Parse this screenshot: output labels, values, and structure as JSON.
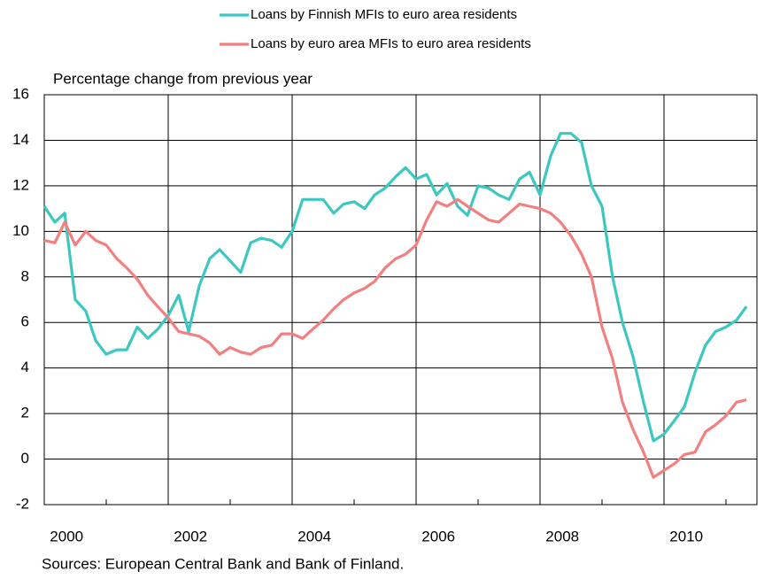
{
  "chart_data": {
    "type": "line",
    "y_label": "Percentage change from previous year",
    "source": "Sources: European Central Bank and Bank of Finland.",
    "x": [
      2000.0,
      2000.17,
      2000.33,
      2000.5,
      2000.67,
      2000.83,
      2001.0,
      2001.17,
      2001.33,
      2001.5,
      2001.67,
      2001.83,
      2002.0,
      2002.17,
      2002.33,
      2002.5,
      2002.67,
      2002.83,
      2003.0,
      2003.17,
      2003.33,
      2003.5,
      2003.67,
      2003.83,
      2004.0,
      2004.17,
      2004.33,
      2004.5,
      2004.67,
      2004.83,
      2005.0,
      2005.17,
      2005.33,
      2005.5,
      2005.67,
      2005.83,
      2006.0,
      2006.17,
      2006.33,
      2006.5,
      2006.67,
      2006.83,
      2007.0,
      2007.17,
      2007.33,
      2007.5,
      2007.67,
      2007.83,
      2008.0,
      2008.17,
      2008.33,
      2008.5,
      2008.67,
      2008.83,
      2009.0,
      2009.17,
      2009.33,
      2009.5,
      2009.67,
      2009.83,
      2010.0,
      2010.17,
      2010.33,
      2010.5,
      2010.67,
      2010.83,
      2011.0,
      2011.17,
      2011.33
    ],
    "series": [
      {
        "name": "Loans by Finnish MFIs to euro area residents",
        "color": "#3cc8c0",
        "values": [
          11.1,
          10.4,
          10.8,
          7.0,
          6.5,
          5.2,
          4.6,
          4.8,
          4.8,
          5.8,
          5.3,
          5.7,
          6.3,
          7.2,
          5.6,
          7.6,
          8.8,
          9.2,
          8.7,
          8.2,
          9.5,
          9.7,
          9.6,
          9.3,
          10.0,
          11.4,
          11.4,
          11.4,
          10.8,
          11.2,
          11.3,
          11.0,
          11.6,
          11.9,
          12.4,
          12.8,
          12.3,
          12.5,
          11.6,
          12.1,
          11.1,
          10.7,
          12.0,
          11.9,
          11.6,
          11.4,
          12.3,
          12.6,
          11.6,
          13.3,
          14.3,
          14.3,
          13.9,
          12.0,
          11.1,
          8.0,
          6.0,
          4.5,
          2.5,
          0.8,
          1.1,
          1.7,
          2.3,
          3.8,
          5.0,
          5.6,
          5.8,
          6.1,
          6.7
        ]
      },
      {
        "name": "Loans by euro area MFIs to euro area residents",
        "color": "#f28080",
        "values": [
          9.6,
          9.5,
          10.4,
          9.4,
          10.0,
          9.6,
          9.4,
          8.8,
          8.4,
          7.9,
          7.2,
          6.7,
          6.2,
          5.6,
          5.5,
          5.4,
          5.1,
          4.6,
          4.9,
          4.7,
          4.6,
          4.9,
          5.0,
          5.5,
          5.5,
          5.3,
          5.7,
          6.1,
          6.6,
          7.0,
          7.3,
          7.5,
          7.8,
          8.4,
          8.8,
          9.0,
          9.4,
          10.5,
          11.3,
          11.1,
          11.4,
          11.1,
          10.8,
          10.5,
          10.4,
          10.8,
          11.2,
          11.1,
          11.0,
          10.8,
          10.4,
          9.8,
          9.0,
          8.0,
          5.8,
          4.4,
          2.5,
          1.3,
          0.3,
          -0.8,
          -0.5,
          -0.2,
          0.2,
          0.3,
          1.2,
          1.5,
          1.9,
          2.5,
          2.6
        ]
      }
    ],
    "xlim": [
      2000,
      2011.5
    ],
    "xticks": [
      2000,
      2002,
      2004,
      2006,
      2008,
      2010
    ],
    "xminorticks": [
      2001,
      2003,
      2005,
      2007,
      2009,
      2011
    ],
    "ylim": [
      -2,
      16
    ],
    "yticks": [
      -2,
      0,
      2,
      4,
      6,
      8,
      10,
      12,
      14,
      16
    ],
    "grid": true
  }
}
